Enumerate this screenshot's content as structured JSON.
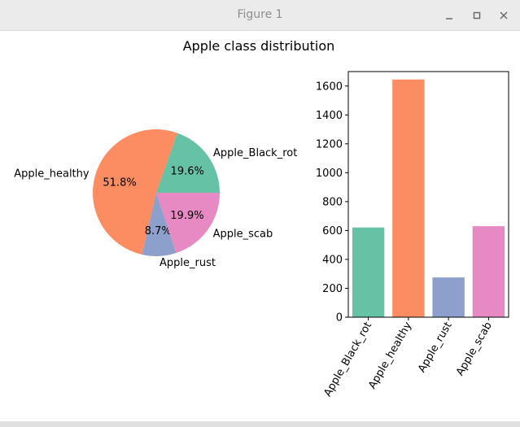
{
  "window": {
    "title": "Figure 1",
    "minimize_icon": "minimize-icon",
    "maximize_icon": "maximize-icon",
    "close_icon": "close-icon"
  },
  "figure": {
    "suptitle": "Apple class distribution"
  },
  "chart_data": [
    {
      "type": "pie",
      "categories": [
        "Apple_Black_rot",
        "Apple_healthy",
        "Apple_rust",
        "Apple_scab"
      ],
      "values": [
        19.6,
        51.8,
        8.7,
        19.9
      ],
      "labels": [
        "19.6%",
        "51.8%",
        "8.7%",
        "19.9%"
      ],
      "colors": [
        "#66c2a5",
        "#fc8d62",
        "#8da0cb",
        "#e78ac3"
      ]
    },
    {
      "type": "bar",
      "categories": [
        "Apple_Black_rot",
        "Apple_healthy",
        "Apple_rust",
        "Apple_scab"
      ],
      "values": [
        621,
        1645,
        275,
        630
      ],
      "colors": [
        "#66c2a5",
        "#fc8d62",
        "#8da0cb",
        "#e78ac3"
      ],
      "ylim": [
        0,
        1700
      ],
      "yticks": [
        0,
        200,
        400,
        600,
        800,
        1000,
        1200,
        1400,
        1600
      ],
      "xlabel": "",
      "ylabel": "",
      "grid": false
    }
  ]
}
